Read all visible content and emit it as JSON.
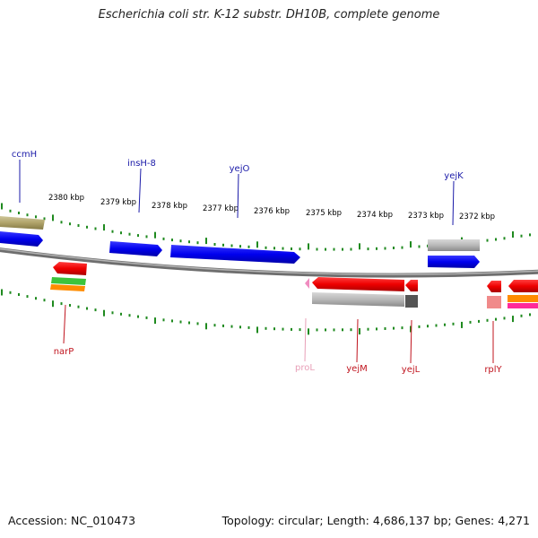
{
  "title": "Escherichia coli str. K-12 substr. DH10B, complete genome",
  "footer": {
    "accession": "Accession: NC_010473",
    "summary": "Topology: circular; Length: 4,686,137 bp; Genes: 4,271"
  },
  "colors": {
    "forward_label": "#1a1aa8",
    "reverse_label": "#c0141e",
    "pseudo_label": "#e8a0b8",
    "tick_green": "#1f8a1f",
    "backbone": "#888888"
  },
  "ruler_labels": [
    "2380 kbp",
    "2379 kbp",
    "2378 kbp",
    "2377 kbp",
    "2376 kbp",
    "2375 kbp",
    "2374 kbp",
    "2373 kbp",
    "2372 kbp"
  ],
  "forward_gene_labels": [
    "ccmH",
    "insH-8",
    "yejO",
    "yejK"
  ],
  "reverse_gene_labels": [
    "narP",
    "proL",
    "yejM",
    "yejL",
    "rplY"
  ]
}
